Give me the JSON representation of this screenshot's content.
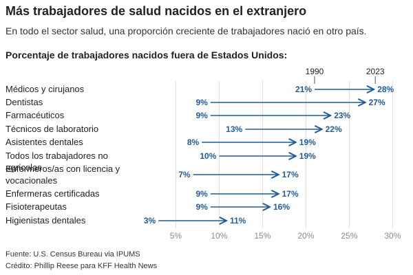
{
  "header": {
    "title": "Más trabajadores de salud nacidos en el extranjero",
    "subtitle": "En todo el sector salud, una proporción creciente de trabajadores nació en otro país.",
    "chart_heading": "Porcentaje de trabajadores nacidos fuera de Estados Unidos:"
  },
  "footer": {
    "source": "Fuente: U.S. Census Bureau via IPUMS",
    "credit": "Crédito: Phillip Reese para KFF Health News"
  },
  "colors": {
    "accent": "#1f5c99",
    "grid": "#dddddd",
    "tick": "#888888"
  },
  "chart_data": {
    "type": "arrow-dot",
    "series": [
      {
        "name": "1990"
      },
      {
        "name": "2023"
      }
    ],
    "xlim": [
      1,
      31
    ],
    "ticks": [
      5,
      10,
      15,
      20,
      25,
      30
    ],
    "tick_labels": [
      "5%",
      "10%",
      "15%",
      "20%",
      "25%",
      "30%"
    ],
    "grid": true,
    "legend": "top",
    "categories": [
      {
        "label": "Médicos y cirujanos",
        "v1990": 21,
        "v2023": 28,
        "l1990": "21%",
        "l2023": "28%"
      },
      {
        "label": "Dentistas",
        "v1990": 9,
        "v2023": 27,
        "l1990": "9%",
        "l2023": "27%"
      },
      {
        "label": "Farmacéuticos",
        "v1990": 9,
        "v2023": 23,
        "l1990": "9%",
        "l2023": "23%"
      },
      {
        "label": "Técnicos de laboratorio",
        "v1990": 13,
        "v2023": 22,
        "l1990": "13%",
        "l2023": "22%"
      },
      {
        "label": "Asistentes dentales",
        "v1990": 8,
        "v2023": 19,
        "l1990": "8%",
        "l2023": "19%"
      },
      {
        "label": "Todos los trabajadores no agrícolas",
        "v1990": 10,
        "v2023": 19,
        "l1990": "10%",
        "l2023": "19%"
      },
      {
        "label": "Enfermeros/as con licencia y vocacionales",
        "v1990": 7,
        "v2023": 17,
        "l1990": "7%",
        "l2023": "17%"
      },
      {
        "label": "Enfermeras certificadas",
        "v1990": 9,
        "v2023": 17,
        "l1990": "9%",
        "l2023": "17%"
      },
      {
        "label": "Fisioterapeutas",
        "v1990": 9,
        "v2023": 16,
        "l1990": "9%",
        "l2023": "16%"
      },
      {
        "label": "Higienistas dentales",
        "v1990": 3,
        "v2023": 11,
        "l1990": "3%",
        "l2023": "11%"
      }
    ]
  }
}
